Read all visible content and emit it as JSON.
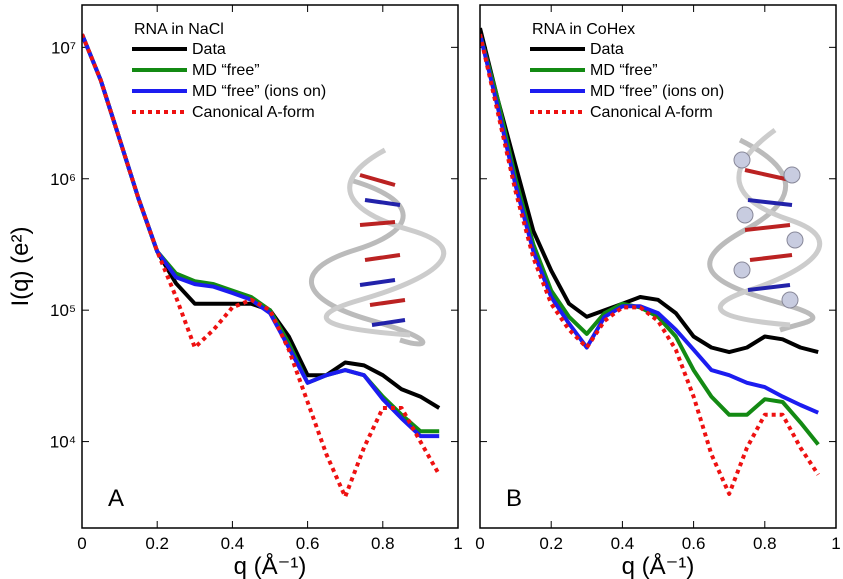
{
  "chart_data": [
    {
      "type": "line",
      "title": "RNA in NaCl",
      "panel_label": "A",
      "log_y": true,
      "x_label": "q (Å⁻¹)",
      "y_label": "I(q) (e²)",
      "xlim": [
        0,
        1
      ],
      "ylim": [
        2200,
        21000000
      ],
      "xticks": [
        0,
        0.2,
        0.4,
        0.6,
        0.8,
        1
      ],
      "yticks": [
        {
          "value": 10000,
          "label": "10⁴"
        },
        {
          "value": 100000,
          "label": "10⁵"
        },
        {
          "value": 1000000,
          "label": "10⁶"
        },
        {
          "value": 10000000,
          "label": "10⁷"
        }
      ],
      "x": [
        0,
        0.05,
        0.1,
        0.15,
        0.2,
        0.25,
        0.3,
        0.35,
        0.4,
        0.45,
        0.5,
        0.55,
        0.6,
        0.65,
        0.7,
        0.75,
        0.8,
        0.85,
        0.9,
        0.95
      ],
      "series": [
        {
          "name": "Data",
          "color": "#000000",
          "values": [
            12600000,
            5600000,
            2000000,
            710000,
            280000,
            160000,
            112000,
            112000,
            112000,
            112000,
            100000,
            63000,
            32000,
            32000,
            40000,
            38000,
            32000,
            25000,
            22000,
            18000
          ]
        },
        {
          "name": "MD “free”",
          "color": "#138a13",
          "values": [
            12600000,
            5600000,
            2000000,
            710000,
            280000,
            190000,
            166000,
            158000,
            141000,
            126000,
            100000,
            56000,
            28000,
            32000,
            35000,
            32000,
            22000,
            16000,
            12000,
            12000
          ]
        },
        {
          "name": "MD “free” (ions on)",
          "color": "#1c1cf0",
          "values": [
            12600000,
            5600000,
            2000000,
            710000,
            280000,
            178000,
            158000,
            151000,
            135000,
            120000,
            95000,
            52000,
            28000,
            32000,
            35000,
            32000,
            21000,
            15000,
            11000,
            11000
          ]
        },
        {
          "name": "Canonical A-form",
          "color": "#ee1111",
          "dashed": true,
          "values": [
            12600000,
            5600000,
            2000000,
            710000,
            280000,
            126000,
            52000,
            71000,
            105000,
            120000,
            100000,
            50000,
            20000,
            8000,
            3800,
            9000,
            18000,
            18000,
            10000,
            5600
          ]
        }
      ]
    },
    {
      "type": "line",
      "title": "RNA in CoHex",
      "panel_label": "B",
      "log_y": true,
      "x_label": "q (Å⁻¹)",
      "xlim": [
        0,
        1
      ],
      "ylim": [
        2200,
        21000000
      ],
      "xticks": [
        0,
        0.2,
        0.4,
        0.6,
        0.8,
        1
      ],
      "x": [
        0,
        0.05,
        0.1,
        0.15,
        0.2,
        0.25,
        0.3,
        0.35,
        0.4,
        0.45,
        0.5,
        0.55,
        0.6,
        0.65,
        0.7,
        0.75,
        0.8,
        0.85,
        0.9,
        0.95
      ],
      "series": [
        {
          "name": "Data",
          "color": "#000000",
          "values": [
            14000000,
            4000000,
            1260000,
            400000,
            200000,
            112000,
            89000,
            100000,
            112000,
            126000,
            120000,
            95000,
            63000,
            52000,
            48000,
            52000,
            63000,
            60000,
            52000,
            48000
          ]
        },
        {
          "name": "MD “free”",
          "color": "#138a13",
          "values": [
            12600000,
            4000000,
            1000000,
            316000,
            141000,
            89000,
            66000,
            95000,
            112000,
            105000,
            89000,
            63000,
            35000,
            22000,
            16000,
            16000,
            21000,
            20000,
            14000,
            9500
          ]
        },
        {
          "name": "MD “free” (ions on)",
          "color": "#1c1cf0",
          "values": [
            12600000,
            3500000,
            890000,
            280000,
            126000,
            79000,
            52000,
            89000,
            107000,
            107000,
            95000,
            71000,
            50000,
            35000,
            32000,
            28000,
            26000,
            22000,
            19000,
            16600
          ]
        },
        {
          "name": "Canonical A-form",
          "color": "#ee1111",
          "dashed": true,
          "values": [
            12600000,
            3200000,
            800000,
            250000,
            112000,
            71000,
            52000,
            83000,
            105000,
            105000,
            83000,
            50000,
            22000,
            8000,
            4000,
            9000,
            16000,
            16000,
            9000,
            5600
          ]
        }
      ]
    }
  ]
}
